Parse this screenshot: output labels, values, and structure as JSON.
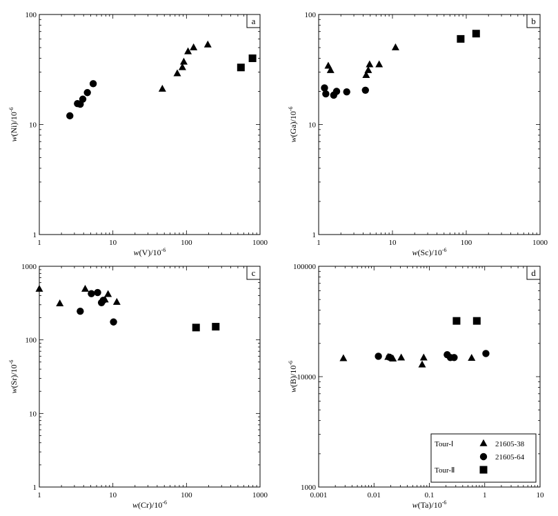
{
  "chart_data": [
    {
      "type": "scatter",
      "panel_label": "a",
      "xlabel": "w(V)/10^-6",
      "ylabel": "w(Ni)/10^-6",
      "xscale": "log",
      "yscale": "log",
      "xlim": [
        1,
        1000
      ],
      "ylim": [
        1,
        100
      ],
      "x_ticks": [
        "1",
        "10",
        "100",
        "1000"
      ],
      "y_ticks": [
        "1",
        "10",
        "100"
      ],
      "series": [
        {
          "marker": "triangle",
          "points": [
            [
              47,
              21
            ],
            [
              75,
              29
            ],
            [
              88,
              33
            ],
            [
              92,
              37
            ],
            [
              105,
              46
            ],
            [
              125,
              50
            ],
            [
              195,
              53
            ]
          ]
        },
        {
          "marker": "circle",
          "points": [
            [
              2.6,
              12
            ],
            [
              3.3,
              15.5
            ],
            [
              3.6,
              15.3
            ],
            [
              3.9,
              17
            ],
            [
              4.5,
              19.5
            ],
            [
              5.4,
              23.5
            ]
          ]
        },
        {
          "marker": "square",
          "points": [
            [
              550,
              33
            ],
            [
              790,
              40
            ]
          ]
        }
      ]
    },
    {
      "type": "scatter",
      "panel_label": "b",
      "xlabel": "w(Sc)/10^-6",
      "ylabel": "w(Ga)/10^-6",
      "xscale": "log",
      "yscale": "log",
      "xlim": [
        1,
        1000
      ],
      "ylim": [
        1,
        100
      ],
      "x_ticks": [
        "1",
        "10",
        "100",
        "1000"
      ],
      "y_ticks": [
        "1",
        "10",
        "100"
      ],
      "series": [
        {
          "marker": "triangle",
          "points": [
            [
              1.35,
              34
            ],
            [
              1.45,
              31
            ],
            [
              4.4,
              28
            ],
            [
              4.7,
              31
            ],
            [
              4.9,
              35
            ],
            [
              6.6,
              35
            ],
            [
              11,
              50
            ]
          ]
        },
        {
          "marker": "circle",
          "points": [
            [
              1.2,
              21.5
            ],
            [
              1.25,
              19
            ],
            [
              1.6,
              18.5
            ],
            [
              1.75,
              20
            ],
            [
              2.4,
              19.8
            ],
            [
              4.3,
              20.5
            ]
          ]
        },
        {
          "marker": "square",
          "points": [
            [
              84,
              60
            ],
            [
              136,
              67
            ]
          ]
        }
      ]
    },
    {
      "type": "scatter",
      "panel_label": "c",
      "xlabel": "w(Cr)/10^-6",
      "ylabel": "w(Sr)/10^-6",
      "xscale": "log",
      "yscale": "log",
      "xlim": [
        1,
        1000
      ],
      "ylim": [
        1,
        1000
      ],
      "x_ticks": [
        "1",
        "10",
        "100",
        "1000"
      ],
      "y_ticks": [
        "1",
        "10",
        "100",
        "1000"
      ],
      "series": [
        {
          "marker": "triangle",
          "points": [
            [
              1.0,
              490
            ],
            [
              1.9,
              310
            ],
            [
              4.2,
              490
            ],
            [
              7.8,
              350
            ],
            [
              8.6,
              415
            ],
            [
              11.3,
              325
            ]
          ]
        },
        {
          "marker": "circle",
          "points": [
            [
              3.6,
              245
            ],
            [
              5.1,
              425
            ],
            [
              6.2,
              440
            ],
            [
              7.0,
              320
            ],
            [
              7.4,
              345
            ],
            [
              10.2,
              175
            ]
          ]
        },
        {
          "marker": "square",
          "points": [
            [
              135,
              147
            ],
            [
              250,
              151
            ]
          ]
        }
      ]
    },
    {
      "type": "scatter",
      "panel_label": "d",
      "xlabel": "w(Ta)/10^-6",
      "ylabel": "w(B)/10^-6",
      "xscale": "log",
      "yscale": "log",
      "xlim": [
        0.001,
        10
      ],
      "ylim": [
        1000,
        100000
      ],
      "x_ticks": [
        "0.001",
        "0.01",
        "0.1",
        "1",
        "10"
      ],
      "y_ticks": [
        "1000",
        "10000",
        "100000"
      ],
      "series": [
        {
          "name": "21605-38",
          "marker": "triangle",
          "points": [
            [
              0.0028,
              14600
            ],
            [
              0.018,
              15000
            ],
            [
              0.022,
              14500
            ],
            [
              0.031,
              14800
            ],
            [
              0.074,
              12800
            ],
            [
              0.079,
              14800
            ],
            [
              0.58,
              14700
            ]
          ]
        },
        {
          "name": "21605-64",
          "marker": "circle",
          "points": [
            [
              0.012,
              15300
            ],
            [
              0.019,
              15000
            ],
            [
              0.21,
              15800
            ],
            [
              0.24,
              14900
            ],
            [
              0.28,
              14900
            ],
            [
              1.05,
              16200
            ]
          ]
        },
        {
          "marker": "square",
          "points": [
            [
              0.31,
              32000
            ],
            [
              0.72,
              32000
            ]
          ]
        }
      ],
      "legend": {
        "placement": "bottom-right",
        "entries": [
          {
            "group": "Tour-Ⅰ",
            "label": "21605-38",
            "marker": "triangle"
          },
          {
            "group": "",
            "label": "21605-64",
            "marker": "circle"
          },
          {
            "group": "Tour-Ⅱ",
            "label": "",
            "marker": "square"
          }
        ]
      }
    }
  ]
}
